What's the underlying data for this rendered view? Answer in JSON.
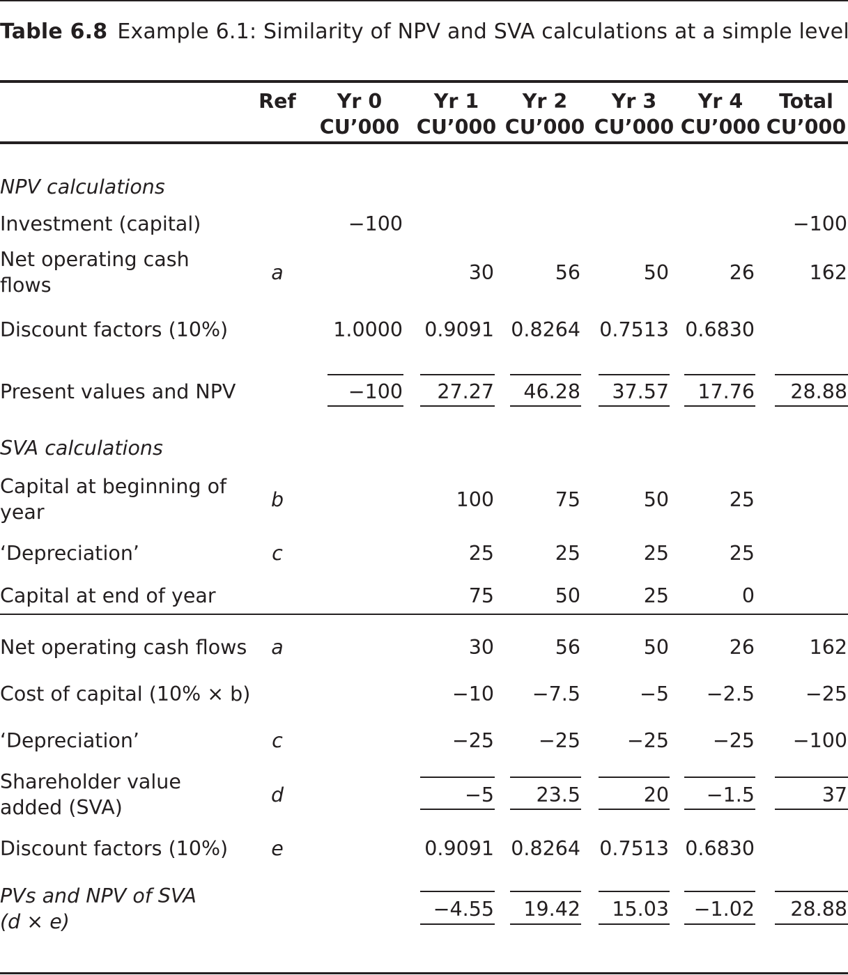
{
  "caption": {
    "number": "Table 6.8",
    "title": "Example 6.1: Similarity of NPV and SVA calculations at a simple level"
  },
  "columns": [
    {
      "key": "ref",
      "line1": "Ref",
      "line2": ""
    },
    {
      "key": "yr0",
      "line1": "Yr 0",
      "line2": "CU’000"
    },
    {
      "key": "yr1",
      "line1": "Yr 1",
      "line2": "CU’000"
    },
    {
      "key": "yr2",
      "line1": "Yr 2",
      "line2": "CU’000"
    },
    {
      "key": "yr3",
      "line1": "Yr 3",
      "line2": "CU’000"
    },
    {
      "key": "yr4",
      "line1": "Yr 4",
      "line2": "CU’000"
    },
    {
      "key": "total",
      "line1": "Total",
      "line2": "CU’000"
    }
  ],
  "sections": [
    {
      "heading": "NPV calculations"
    },
    {
      "heading": "SVA calculations"
    }
  ],
  "rows": [
    {
      "label": "Investment (capital)",
      "ref": "",
      "yr0": "−100",
      "yr1": "",
      "yr2": "",
      "yr3": "",
      "yr4": "",
      "total": "−100"
    },
    {
      "label": "Net operating cash flows",
      "ref": "a",
      "yr0": "",
      "yr1": "30",
      "yr2": "56",
      "yr3": "50",
      "yr4": "26",
      "total": "162"
    },
    {
      "label": "Discount factors (10%)",
      "ref": "",
      "yr0": "1.0000",
      "yr1": "0.9091",
      "yr2": "0.8264",
      "yr3": "0.7513",
      "yr4": "0.6830",
      "total": ""
    },
    {
      "label": "Present values and NPV",
      "ref": "",
      "yr0": "−100",
      "yr1": "27.27",
      "yr2": "46.28",
      "yr3": "37.57",
      "yr4": "17.76",
      "total": "28.88"
    },
    {
      "label": "Capital at beginning of year",
      "ref": "b",
      "yr0": "",
      "yr1": "100",
      "yr2": "75",
      "yr3": "50",
      "yr4": "25",
      "total": ""
    },
    {
      "label": "‘Depreciation’",
      "ref": "c",
      "yr0": "",
      "yr1": "25",
      "yr2": "25",
      "yr3": "25",
      "yr4": "25",
      "total": ""
    },
    {
      "label": "Capital at end of year",
      "ref": "",
      "yr0": "",
      "yr1": "75",
      "yr2": "50",
      "yr3": "25",
      "yr4": "0",
      "total": ""
    },
    {
      "label": "Net operating cash flows",
      "ref": "a",
      "yr0": "",
      "yr1": "30",
      "yr2": "56",
      "yr3": "50",
      "yr4": "26",
      "total": "162"
    },
    {
      "label": "Cost of capital (10% × b)",
      "ref": "",
      "yr0": "",
      "yr1": "−10",
      "yr2": "−7.5",
      "yr3": "−5",
      "yr4": "−2.5",
      "total": "−25"
    },
    {
      "label": "‘Depreciation’",
      "ref": "c",
      "yr0": "",
      "yr1": "−25",
      "yr2": "−25",
      "yr3": "−25",
      "yr4": "−25",
      "total": "−100"
    },
    {
      "label": "Shareholder value added (SVA)",
      "ref": "d",
      "yr0": "",
      "yr1": "−5",
      "yr2": "23.5",
      "yr3": "20",
      "yr4": "−1.5",
      "total": "37"
    },
    {
      "label": "Discount factors (10%)",
      "ref": "e",
      "yr0": "",
      "yr1": "0.9091",
      "yr2": "0.8264",
      "yr3": "0.7513",
      "yr4": "0.6830",
      "total": ""
    },
    {
      "label": "PVs and NPV of SVA (d × e)",
      "ref": "",
      "yr0": "",
      "yr1": "−4.55",
      "yr2": "19.42",
      "yr3": "15.03",
      "yr4": "−1.02",
      "total": "28.88"
    }
  ]
}
